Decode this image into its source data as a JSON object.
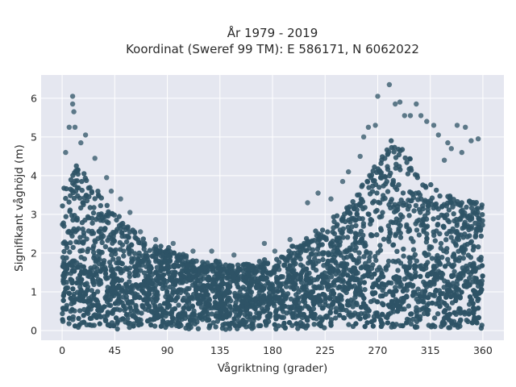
{
  "chart_data": {
    "type": "scatter",
    "title": "År 1979 - 2019",
    "subtitle": "Koordinat (Sweref 99 TM): E 586171, N 6062022",
    "xlabel": "Vågriktning (grader)",
    "ylabel": "Signifikant våghöjd (m)",
    "xlim": [
      -18,
      378
    ],
    "ylim": [
      -0.25,
      6.6
    ],
    "xticks": [
      0,
      45,
      90,
      135,
      180,
      225,
      270,
      315,
      360
    ],
    "yticks": [
      0,
      1,
      2,
      3,
      4,
      5,
      6
    ],
    "grid": true,
    "legend": "none",
    "envelope": {
      "x": [
        0,
        10,
        20,
        30,
        45,
        60,
        75,
        90,
        105,
        120,
        135,
        150,
        165,
        180,
        195,
        210,
        225,
        240,
        255,
        265,
        275,
        282,
        290,
        300,
        315,
        330,
        345,
        360
      ],
      "upper_y": [
        3.7,
        4.3,
        4.1,
        3.6,
        3.0,
        2.6,
        2.3,
        2.1,
        1.9,
        1.8,
        1.75,
        1.7,
        1.75,
        1.85,
        2.1,
        2.4,
        2.7,
        3.1,
        3.6,
        4.2,
        4.7,
        4.9,
        4.7,
        4.3,
        3.8,
        3.5,
        3.4,
        3.3
      ]
    },
    "outliers": [
      {
        "x": 9,
        "y": 6.05
      },
      {
        "x": 9,
        "y": 5.85
      },
      {
        "x": 10,
        "y": 5.65
      },
      {
        "x": 6,
        "y": 5.25
      },
      {
        "x": 11,
        "y": 5.25
      },
      {
        "x": 20,
        "y": 5.05
      },
      {
        "x": 16,
        "y": 4.85
      },
      {
        "x": 28,
        "y": 4.45
      },
      {
        "x": 3,
        "y": 4.6
      },
      {
        "x": 38,
        "y": 3.95
      },
      {
        "x": 42,
        "y": 3.6
      },
      {
        "x": 50,
        "y": 3.4
      },
      {
        "x": 58,
        "y": 3.05
      },
      {
        "x": 67,
        "y": 2.55
      },
      {
        "x": 80,
        "y": 2.35
      },
      {
        "x": 95,
        "y": 2.25
      },
      {
        "x": 112,
        "y": 2.05
      },
      {
        "x": 128,
        "y": 2.05
      },
      {
        "x": 147,
        "y": 1.95
      },
      {
        "x": 173,
        "y": 2.25
      },
      {
        "x": 182,
        "y": 2.05
      },
      {
        "x": 195,
        "y": 2.35
      },
      {
        "x": 210,
        "y": 3.3
      },
      {
        "x": 219,
        "y": 3.55
      },
      {
        "x": 230,
        "y": 3.4
      },
      {
        "x": 240,
        "y": 3.85
      },
      {
        "x": 245,
        "y": 4.1
      },
      {
        "x": 255,
        "y": 4.5
      },
      {
        "x": 258,
        "y": 5.0
      },
      {
        "x": 262,
        "y": 5.25
      },
      {
        "x": 268,
        "y": 5.3
      },
      {
        "x": 270,
        "y": 6.05
      },
      {
        "x": 280,
        "y": 6.35
      },
      {
        "x": 285,
        "y": 5.85
      },
      {
        "x": 289,
        "y": 5.9
      },
      {
        "x": 293,
        "y": 5.55
      },
      {
        "x": 298,
        "y": 5.55
      },
      {
        "x": 303,
        "y": 5.85
      },
      {
        "x": 307,
        "y": 5.55
      },
      {
        "x": 312,
        "y": 5.4
      },
      {
        "x": 318,
        "y": 5.3
      },
      {
        "x": 322,
        "y": 5.05
      },
      {
        "x": 330,
        "y": 4.85
      },
      {
        "x": 338,
        "y": 5.3
      },
      {
        "x": 345,
        "y": 5.25
      },
      {
        "x": 350,
        "y": 4.9
      },
      {
        "x": 356,
        "y": 4.95
      },
      {
        "x": 342,
        "y": 4.6
      },
      {
        "x": 327,
        "y": 4.4
      },
      {
        "x": 333,
        "y": 4.7
      }
    ],
    "colors": {
      "points": "#2e5366",
      "background": "#e5e7f0",
      "grid": "#ffffff"
    }
  }
}
